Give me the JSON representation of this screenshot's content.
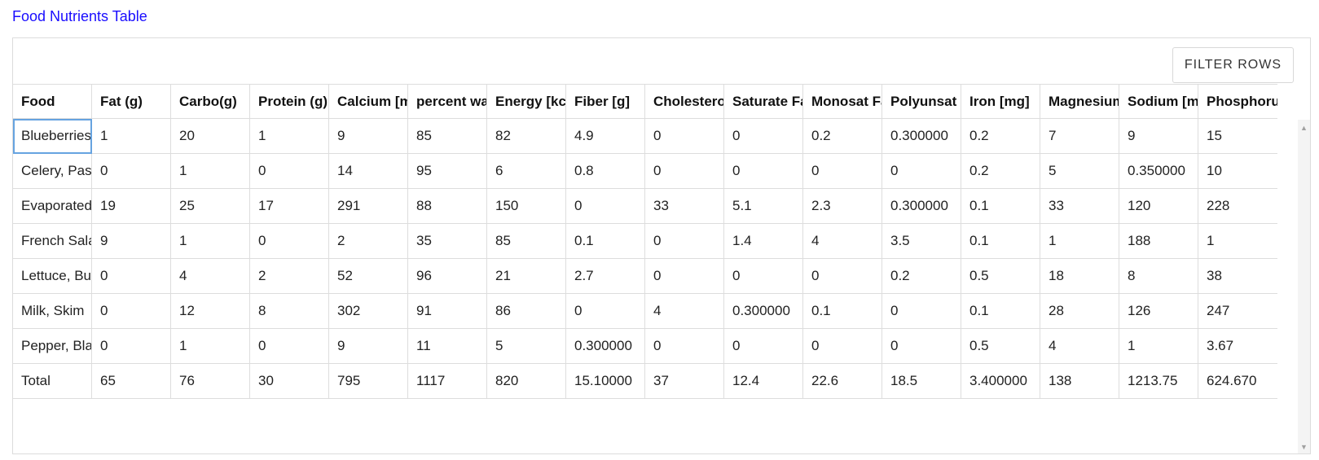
{
  "page": {
    "title": "Food Nutrients Table"
  },
  "toolbar": {
    "filter_label": "FILTER ROWS"
  },
  "table": {
    "columns": [
      "Food",
      "Fat (g)",
      "Carbo(g)",
      "Protein (g)",
      "Calcium [mg]",
      "percent water",
      "Energy [kcal]",
      "Fiber [g]",
      "Cholesterol",
      "Saturate Fat",
      "Monosat Fat",
      "Polyunsat",
      "Iron [mg]",
      "Magnesium",
      "Sodium [mg]",
      "Phosphorus"
    ],
    "rows": [
      [
        "Blueberries",
        "1",
        "20",
        "1",
        "9",
        "85",
        "82",
        "4.9",
        "0",
        "0",
        "0.2",
        "0.300000",
        "0.2",
        "7",
        "9",
        "15"
      ],
      [
        "Celery, Pascal",
        "0",
        "1",
        "0",
        "14",
        "95",
        "6",
        "0.8",
        "0",
        "0",
        "0",
        "0",
        "0.2",
        "5",
        "0.350000",
        "10"
      ],
      [
        "Evaporated Milk",
        "19",
        "25",
        "17",
        "291",
        "88",
        "150",
        "0",
        "33",
        "5.1",
        "2.3",
        "0.300000",
        "0.1",
        "33",
        "120",
        "228"
      ],
      [
        "French Salad Dressing",
        "9",
        "1",
        "0",
        "2",
        "35",
        "85",
        "0.1",
        "0",
        "1.4",
        "4",
        "3.5",
        "0.1",
        "1",
        "188",
        "1"
      ],
      [
        "Lettuce, Butterhead",
        "0",
        "4",
        "2",
        "52",
        "96",
        "21",
        "2.7",
        "0",
        "0",
        "0",
        "0.2",
        "0.5",
        "18",
        "8",
        "38"
      ],
      [
        "Milk, Skim",
        "0",
        "12",
        "8",
        "302",
        "91",
        "86",
        "0",
        "4",
        "0.300000",
        "0.1",
        "0",
        "0.1",
        "28",
        "126",
        "247"
      ],
      [
        "Pepper, Black",
        "0",
        "1",
        "0",
        "9",
        "11",
        "5",
        "0.300000",
        "0",
        "0",
        "0",
        "0",
        "0.5",
        "4",
        "1",
        "3.67"
      ]
    ],
    "total": [
      "Total",
      "65",
      "76",
      "30",
      "795",
      "1117",
      "820",
      "15.10000",
      "37",
      "12.4",
      "22.6",
      "18.5",
      "3.400000",
      "138",
      "1213.75",
      "624.670"
    ]
  },
  "icons": {
    "scroll_up": "scroll-up-icon",
    "scroll_down": "scroll-down-icon"
  },
  "colors": {
    "title_link": "#1a0dff",
    "selection": "#66a3e0",
    "border": "#dddddd"
  }
}
